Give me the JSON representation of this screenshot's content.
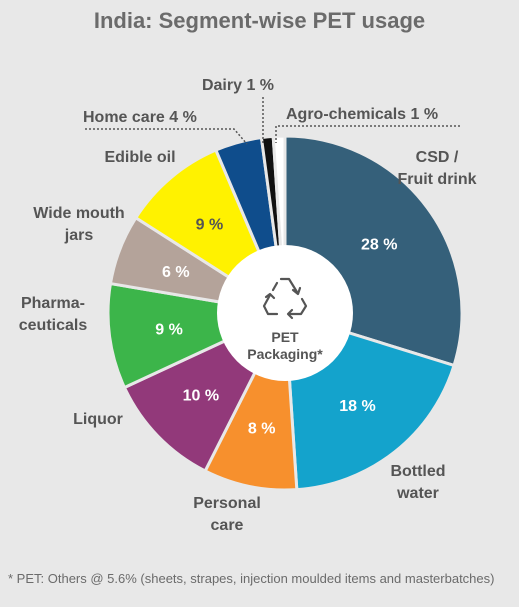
{
  "chart_data": {
    "type": "pie",
    "title": "India: Segment-wise PET usage",
    "center_label": [
      "PET",
      "Packaging*"
    ],
    "center_icon": "recycle-icon",
    "slices": [
      {
        "label": [
          "CSD /",
          "Fruit drink"
        ],
        "value": 28,
        "display": "28 %",
        "color": "#35607a",
        "value_color": "#ffffff"
      },
      {
        "label": [
          "Bottled",
          "water"
        ],
        "value": 18,
        "display": "18 %",
        "color": "#14a3cc",
        "value_color": "#ffffff"
      },
      {
        "label": [
          "Personal",
          "care"
        ],
        "value": 8,
        "display": "8 %",
        "color": "#f7902d",
        "value_color": "#ffffff"
      },
      {
        "label": [
          "Liquor"
        ],
        "value": 10,
        "display": "10 %",
        "color": "#92397a",
        "value_color": "#ffffff"
      },
      {
        "label": [
          "Pharma-",
          "ceuticals"
        ],
        "value": 9,
        "display": "9 %",
        "color": "#3cb54a",
        "value_color": "#ffffff"
      },
      {
        "label": [
          "Wide mouth",
          "jars"
        ],
        "value": 6,
        "display": "6 %",
        "color": "#b4a39a",
        "value_color": "#ffffff"
      },
      {
        "label": [
          "Edible oil"
        ],
        "value": 9,
        "display": "9 %",
        "color": "#fff200",
        "value_color": "#555555"
      },
      {
        "label": [
          "Home care 4 %"
        ],
        "value": 4,
        "display": "",
        "color": "#0f4d8c",
        "value_color": "#ffffff"
      },
      {
        "label": [
          "Dairy 1 %"
        ],
        "value": 1,
        "display": "",
        "color": "#111111",
        "value_color": "#ffffff"
      },
      {
        "label": [
          "Agro-chemicals 1 %"
        ],
        "value": 1,
        "display": "",
        "color": "#ffffff",
        "value_color": "#555555"
      }
    ]
  },
  "footnote": "* PET: Others @ 5.6% (sheets, strapes, injection moulded items and masterbatches)"
}
